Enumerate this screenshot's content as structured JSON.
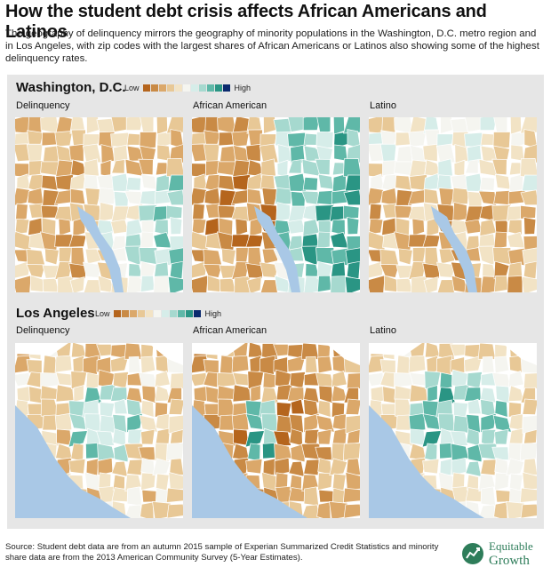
{
  "title": "How the student debt crisis affects African Americans and Latinos",
  "subtitle": "The geography of delinquency mirrors the geography of minority populations in the Washington, D.C. metro region and in Los Angeles, with zip codes with the largest shares of African Americans or Latinos also showing some of the highest delinquency rates.",
  "legend": {
    "low": "Low",
    "high": "High",
    "colors": [
      "#b5651d",
      "#c98a45",
      "#dba86a",
      "#e8c896",
      "#f2e3c5",
      "#f5f5f0",
      "#d6ede9",
      "#a6d9cf",
      "#5fb8a8",
      "#2a9584",
      "#0b2a6e"
    ]
  },
  "regions": [
    {
      "name": "Washington, D.C.",
      "maps": [
        {
          "label": "Delinquency",
          "id": "dc-delinquency"
        },
        {
          "label": "African American",
          "id": "dc-african-american"
        },
        {
          "label": "Latino",
          "id": "dc-latino"
        }
      ]
    },
    {
      "name": "Los Angeles",
      "maps": [
        {
          "label": "Delinquency",
          "id": "la-delinquency"
        },
        {
          "label": "African American",
          "id": "la-african-american"
        },
        {
          "label": "Latino",
          "id": "la-latino"
        }
      ]
    }
  ],
  "source": "Source: Student debt data are from an autumn 2015 sample of Experian Summarized Credit Statistics and minority share data are from the 2013 American Community Survey (5-Year Estimates).",
  "logo": {
    "line1": "Equitable",
    "line2": "Growth"
  },
  "colors": {
    "water": "#a9c8e6",
    "border": "#ffffff",
    "panel": "#e6e6e6"
  }
}
